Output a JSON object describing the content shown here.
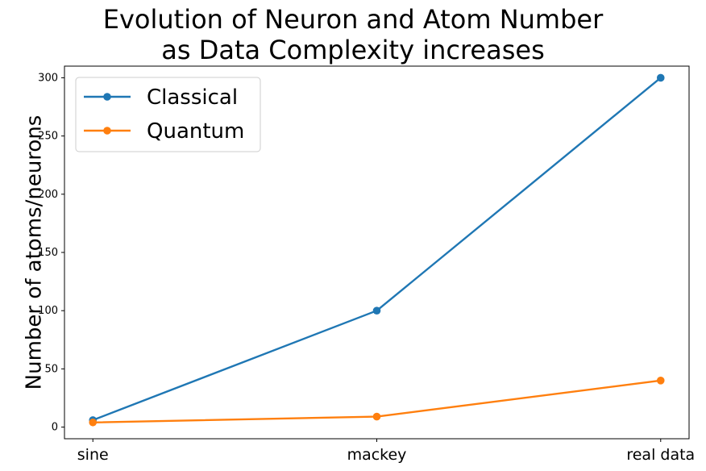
{
  "chart_data": {
    "type": "line",
    "title_line1": "Evolution of Neuron and Atom Number",
    "title_line2": "as Data Complexity increases",
    "xlabel": "",
    "ylabel": "Number of atoms/neurons",
    "categories": [
      "sine",
      "mackey",
      "real data"
    ],
    "ylim": [
      -10,
      310
    ],
    "yticks": [
      "0",
      "50",
      "100",
      "150",
      "200",
      "250",
      "300"
    ],
    "grid": false,
    "legend_position": "top-left",
    "series": [
      {
        "name": "Classical",
        "color": "#1f77b4",
        "values": [
          6,
          100,
          300
        ]
      },
      {
        "name": "Quantum",
        "color": "#ff7f0e",
        "values": [
          4,
          9,
          40
        ]
      }
    ]
  }
}
